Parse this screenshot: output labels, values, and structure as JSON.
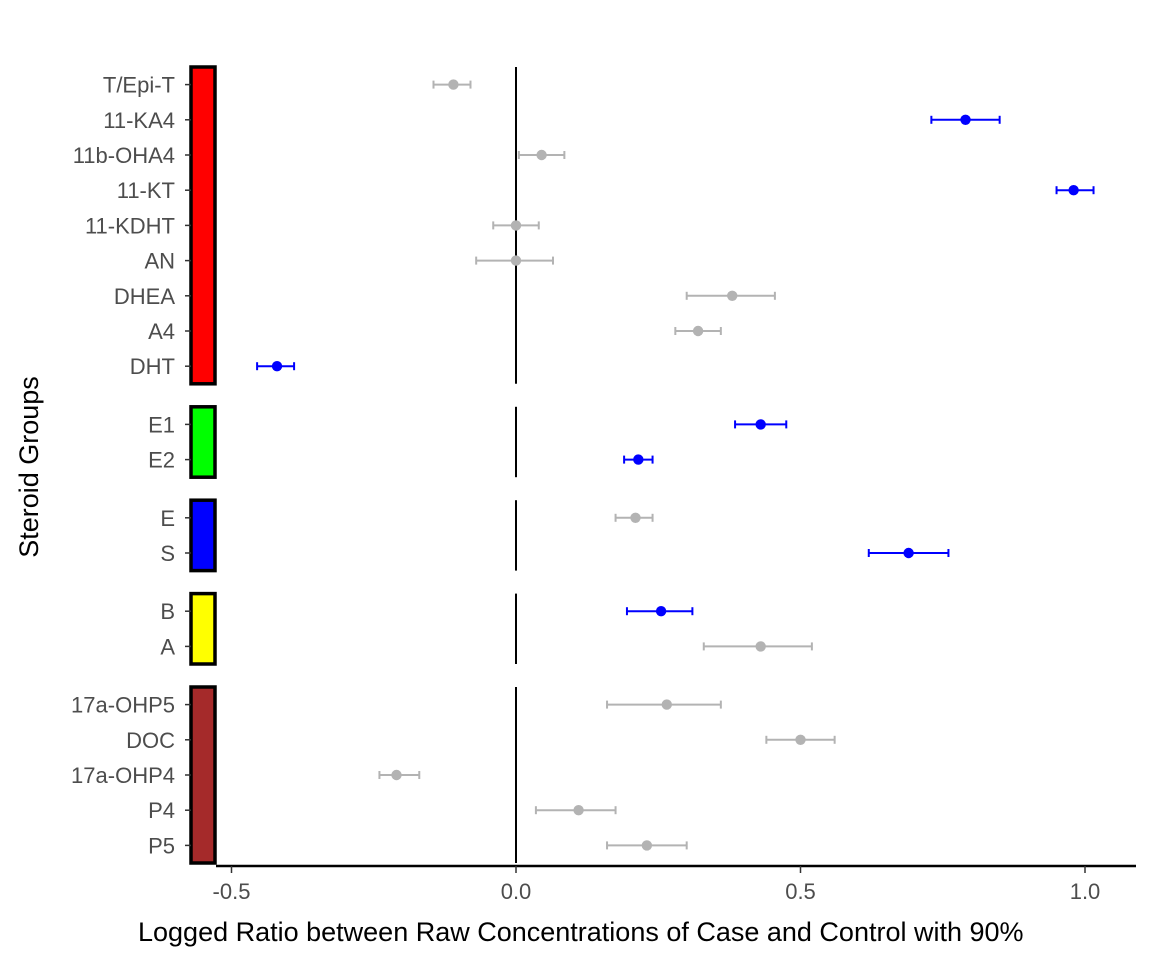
{
  "chart_data": {
    "type": "forest",
    "xlabel": "Logged Ratio between Raw Concentrations of Case and Control with 90%",
    "ylabel": "Steroid Groups",
    "xlim": [
      -0.5,
      1.0
    ],
    "xticks": [
      "-0.5",
      "0.0",
      "0.5",
      "1.0"
    ],
    "reference_line": 0,
    "grid": false,
    "colors": {
      "significant": "#0000ff",
      "not_significant": "#b3b3b3"
    },
    "groups": [
      {
        "color": "#ff0000",
        "rows": [
          {
            "label": "T/Epi-T",
            "estimate": -0.11,
            "lower": -0.145,
            "upper": -0.08,
            "significant": false
          },
          {
            "label": "11-KA4",
            "estimate": 0.79,
            "lower": 0.73,
            "upper": 0.85,
            "significant": true
          },
          {
            "label": "11b-OHA4",
            "estimate": 0.045,
            "lower": 0.005,
            "upper": 0.085,
            "significant": false
          },
          {
            "label": "11-KT",
            "estimate": 0.98,
            "lower": 0.95,
            "upper": 1.015,
            "significant": true
          },
          {
            "label": "11-KDHT",
            "estimate": 0.0,
            "lower": -0.04,
            "upper": 0.04,
            "significant": false
          },
          {
            "label": "AN",
            "estimate": 0.0,
            "lower": -0.07,
            "upper": 0.065,
            "significant": false
          },
          {
            "label": "DHEA",
            "estimate": 0.38,
            "lower": 0.3,
            "upper": 0.455,
            "significant": false
          },
          {
            "label": "A4",
            "estimate": 0.32,
            "lower": 0.28,
            "upper": 0.36,
            "significant": false
          },
          {
            "label": "DHT",
            "estimate": -0.42,
            "lower": -0.455,
            "upper": -0.39,
            "significant": true
          }
        ]
      },
      {
        "color": "#00ff00",
        "rows": [
          {
            "label": "E1",
            "estimate": 0.43,
            "lower": 0.385,
            "upper": 0.475,
            "significant": true
          },
          {
            "label": "E2",
            "estimate": 0.215,
            "lower": 0.19,
            "upper": 0.24,
            "significant": true
          }
        ]
      },
      {
        "color": "#0000ff",
        "rows": [
          {
            "label": "E",
            "estimate": 0.21,
            "lower": 0.175,
            "upper": 0.24,
            "significant": false
          },
          {
            "label": "S",
            "estimate": 0.69,
            "lower": 0.62,
            "upper": 0.76,
            "significant": true
          }
        ]
      },
      {
        "color": "#ffff00",
        "rows": [
          {
            "label": "B",
            "estimate": 0.255,
            "lower": 0.195,
            "upper": 0.31,
            "significant": true
          },
          {
            "label": "A",
            "estimate": 0.43,
            "lower": 0.33,
            "upper": 0.52,
            "significant": false
          }
        ]
      },
      {
        "color": "#a52a2a",
        "rows": [
          {
            "label": "17a-OHP5",
            "estimate": 0.265,
            "lower": 0.16,
            "upper": 0.36,
            "significant": false
          },
          {
            "label": "DOC",
            "estimate": 0.5,
            "lower": 0.44,
            "upper": 0.56,
            "significant": false
          },
          {
            "label": "17a-OHP4",
            "estimate": -0.21,
            "lower": -0.24,
            "upper": -0.17,
            "significant": false
          },
          {
            "label": "P4",
            "estimate": 0.11,
            "lower": 0.035,
            "upper": 0.175,
            "significant": false
          },
          {
            "label": "P5",
            "estimate": 0.23,
            "lower": 0.16,
            "upper": 0.3,
            "significant": false
          }
        ]
      }
    ]
  }
}
